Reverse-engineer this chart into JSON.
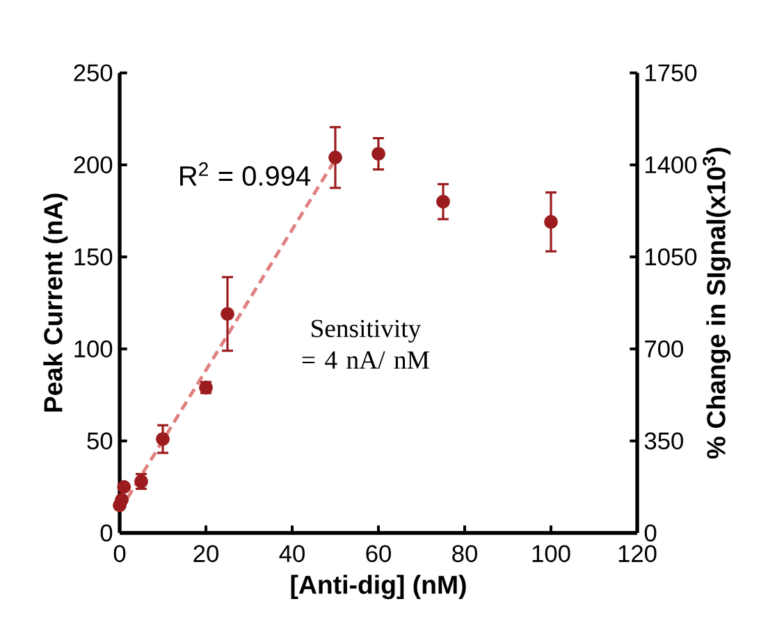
{
  "chart_data": {
    "type": "scatter",
    "xlabel": "[Anti-dig] (nM)",
    "ylabel": "Peak Current (nA)",
    "y2label": "% Change in SIgnal(x10$^{3}$)",
    "x": [
      0,
      0.5,
      1,
      5,
      10,
      20,
      25,
      50,
      60,
      75,
      100
    ],
    "series": [
      {
        "color": "#9b1b1e",
        "marker": "circle",
        "values": [
          15,
          18,
          25,
          28,
          51,
          79,
          119,
          204,
          206,
          180,
          169
        ],
        "errors": [
          null,
          null,
          null,
          4,
          7.5,
          3,
          20,
          16.5,
          8.5,
          9.5,
          16
        ]
      },
      {
        "type": "line",
        "color": "#e08080",
        "line_style": "dashed",
        "marker": "none",
        "x": [
          0,
          50
        ],
        "values": [
          12,
          203
        ]
      }
    ],
    "xlim": [
      0,
      120
    ],
    "xticks": [
      0,
      20,
      40,
      60,
      80,
      100,
      120
    ],
    "ylim": [
      0,
      250
    ],
    "yticks": [
      0,
      50,
      100,
      150,
      200,
      250
    ],
    "y2lim": [
      0,
      1750
    ],
    "y2ticks": [
      0,
      350,
      700,
      1050,
      1400,
      1750
    ],
    "annotations": [
      "R$^{2}$ = 0.994",
      "Sensitivity = 4 nA/ nM"
    ]
  }
}
